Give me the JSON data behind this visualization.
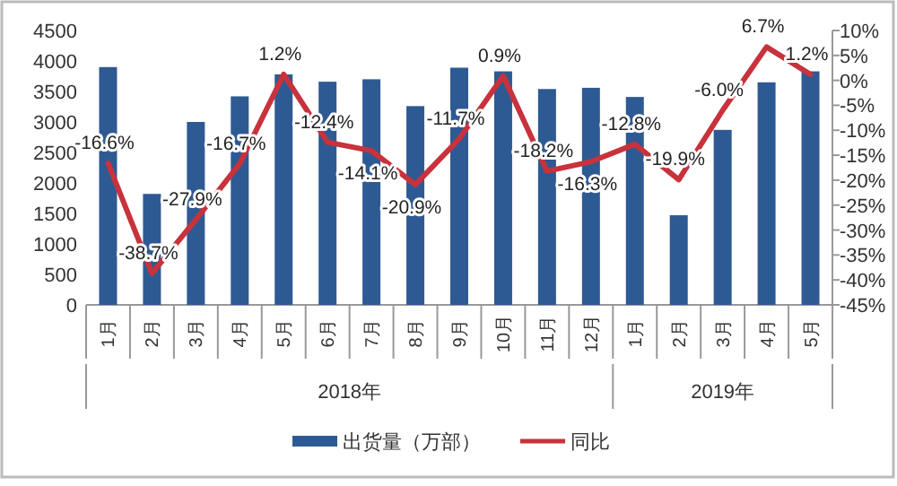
{
  "chart_data": {
    "type": "bar",
    "categories": [
      "1月",
      "2月",
      "3月",
      "4月",
      "5月",
      "6月",
      "7月",
      "8月",
      "9月",
      "10月",
      "11月",
      "12月",
      "1月",
      "2月",
      "3月",
      "4月",
      "5月"
    ],
    "series": [
      {
        "name": "出货量（万部）",
        "color": "#2e5a94",
        "values": [
          3900,
          1820,
          3000,
          3420,
          3780,
          3660,
          3700,
          3260,
          3890,
          3830,
          3540,
          3560,
          3410,
          1470,
          2870,
          3650,
          3830
        ]
      },
      {
        "name": "同比",
        "type": "line",
        "axis": "y2",
        "color": "#c8323c",
        "values": [
          -16.6,
          -38.7,
          -27.9,
          -16.7,
          1.2,
          -12.4,
          -14.1,
          -20.9,
          -11.7,
          0.9,
          -18.2,
          -16.3,
          -12.8,
          -19.9,
          -6.0,
          6.7,
          1.2
        ],
        "value_labels": [
          "-16.6%",
          "-38.7%",
          "-27.9%",
          "-16.7%",
          "1.2%",
          "-12.4%",
          "-14.1%",
          "-20.9%",
          "-11.7%",
          "0.9%",
          "-18.2%",
          "-16.3%",
          "-12.8%",
          "-19.9%",
          "-6.0%",
          "6.7%",
          "1.2%"
        ]
      }
    ],
    "ylim": [
      0,
      4500
    ],
    "yticks": [
      0,
      500,
      1000,
      1500,
      2000,
      2500,
      3000,
      3500,
      4000,
      4500
    ],
    "y2lim": [
      -45,
      10
    ],
    "y2ticks": [
      {
        "value": -45,
        "label": "-45%"
      },
      {
        "value": -40,
        "label": "-40%"
      },
      {
        "value": -35,
        "label": "-35%"
      },
      {
        "value": -30,
        "label": "-30%"
      },
      {
        "value": -25,
        "label": "-25%"
      },
      {
        "value": -20,
        "label": "-20%"
      },
      {
        "value": -15,
        "label": "-15%"
      },
      {
        "value": -10,
        "label": "-10%"
      },
      {
        "value": -5,
        "label": "-5%"
      },
      {
        "value": 0,
        "label": "0%"
      },
      {
        "value": 5,
        "label": "5%"
      },
      {
        "value": 10,
        "label": "10%"
      }
    ],
    "annotations": [
      "2018年",
      "2019年"
    ],
    "legend": "bottom"
  }
}
